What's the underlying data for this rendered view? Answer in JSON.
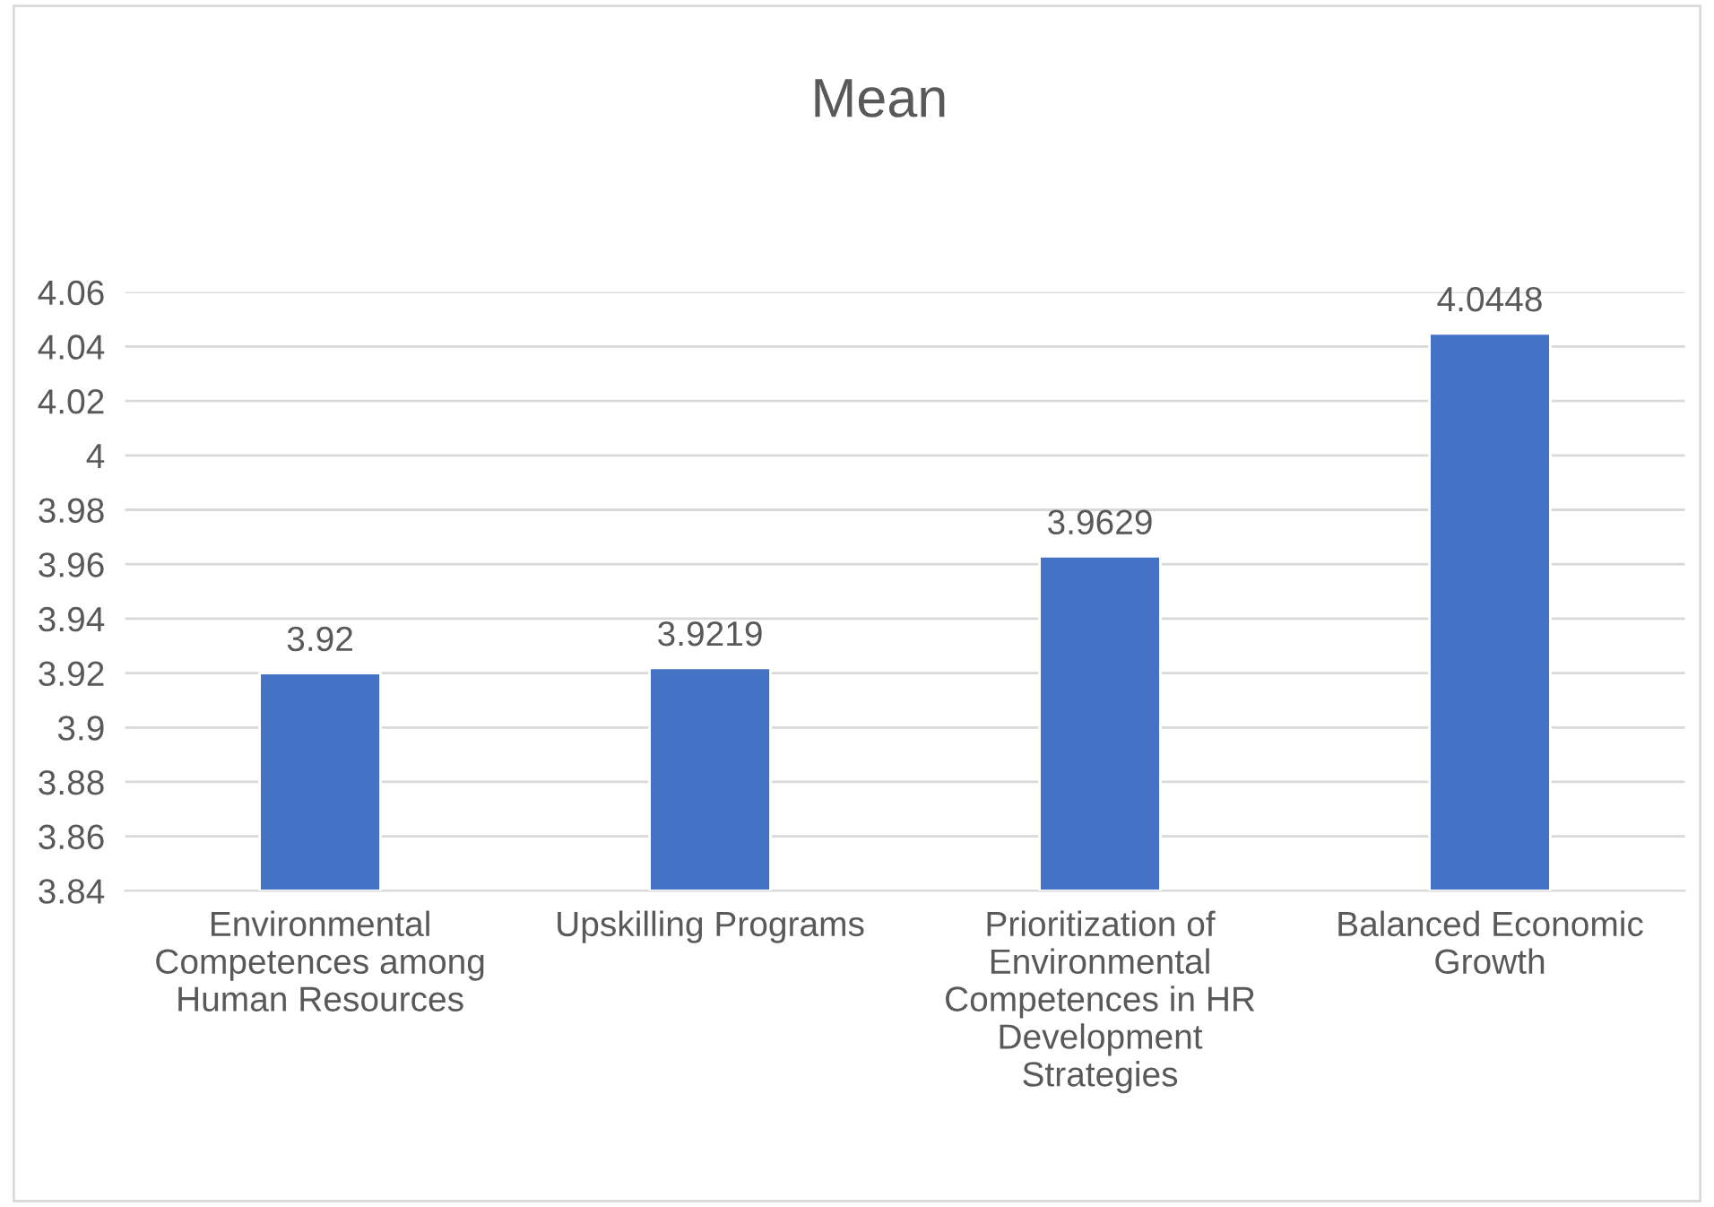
{
  "chart_data": {
    "type": "bar",
    "title": "Mean",
    "categories": [
      "Environmental Competences among Human Resources",
      "Upskilling Programs",
      "Prioritization of Environmental Competences in HR Development Strategies",
      "Balanced Economic Growth"
    ],
    "values": [
      3.92,
      3.9219,
      3.9629,
      4.0448
    ],
    "color": "#4472c4",
    "ylim": [
      3.84,
      4.06
    ],
    "yticks": [
      3.84,
      3.86,
      3.88,
      3.9,
      3.92,
      3.94,
      3.96,
      3.98,
      4,
      4.02,
      4.04,
      4.06
    ],
    "grid": "y",
    "legend": false,
    "data_labels": true
  }
}
